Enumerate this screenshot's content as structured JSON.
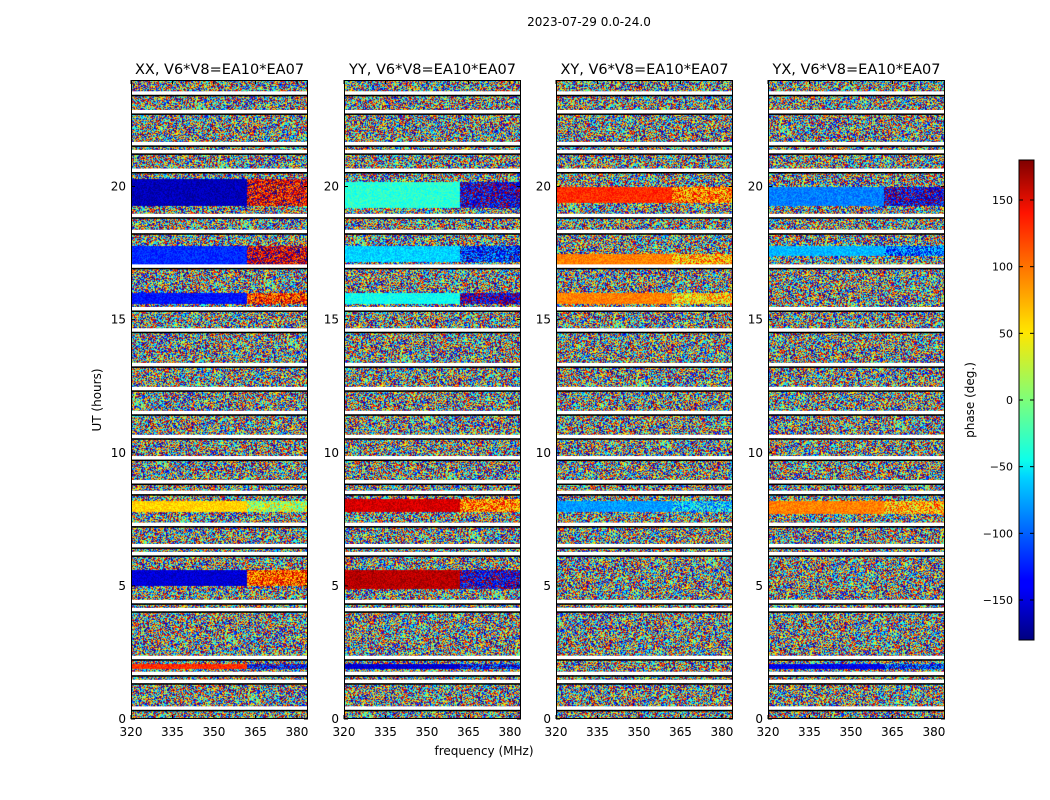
{
  "suptitle": "2023-07-29 0.0-24.0",
  "chart_data": {
    "type": "heatmap",
    "title": "2023-07-29 0.0-24.0",
    "xlabel": "frequency (MHz)",
    "ylabel": "UT (hours)",
    "xlim": [
      320,
      384
    ],
    "ylim": [
      0,
      24
    ],
    "xticks": [
      320,
      335,
      350,
      365,
      380
    ],
    "yticks": [
      0,
      5,
      10,
      15,
      20
    ],
    "colorbar": {
      "label": "phase (deg.)",
      "range": [
        -180,
        180
      ],
      "ticks": [
        150,
        100,
        50,
        0,
        -50,
        -100,
        -150
      ],
      "tick_labels": [
        "150",
        "100",
        "50",
        "0",
        "−50",
        "−100",
        "−150"
      ],
      "colormap": "jet"
    },
    "panels": [
      {
        "title": "XX, V6*V8=EA10*EA07",
        "coherent_bands": [
          {
            "t0": 19.3,
            "t1": 20.3,
            "phase_low": -160,
            "phase_high": 140
          },
          {
            "t0": 17.0,
            "t1": 17.8,
            "phase_low": -120,
            "phase_high": 150
          },
          {
            "t0": 15.6,
            "t1": 16.0,
            "phase_low": -130,
            "phase_high": 120
          },
          {
            "t0": 7.8,
            "t1": 8.2,
            "phase_low": 60,
            "phase_high": 20
          },
          {
            "t0": 5.0,
            "t1": 5.6,
            "phase_low": -150,
            "phase_high": 110
          },
          {
            "t0": 1.9,
            "t1": 2.1,
            "phase_low": 120,
            "phase_high": -140
          }
        ]
      },
      {
        "title": "YY, V6*V8=EA10*EA07",
        "coherent_bands": [
          {
            "t0": 19.2,
            "t1": 20.2,
            "phase_low": -30,
            "phase_high": -150
          },
          {
            "t0": 17.2,
            "t1": 17.8,
            "phase_low": -60,
            "phase_high": -120
          },
          {
            "t0": 15.6,
            "t1": 16.0,
            "phase_low": -40,
            "phase_high": -160
          },
          {
            "t0": 7.8,
            "t1": 8.3,
            "phase_low": 150,
            "phase_high": 90
          },
          {
            "t0": 4.9,
            "t1": 5.6,
            "phase_low": 160,
            "phase_high": -150
          },
          {
            "t0": 1.9,
            "t1": 2.1,
            "phase_low": -150,
            "phase_high": -130
          }
        ]
      },
      {
        "title": "XY, V6*V8=EA10*EA07",
        "coherent_bands": [
          {
            "t0": 19.4,
            "t1": 20.0,
            "phase_low": 120,
            "phase_high": 90
          },
          {
            "t0": 17.0,
            "t1": 17.5,
            "phase_low": 90,
            "phase_high": 70
          },
          {
            "t0": 15.6,
            "t1": 16.0,
            "phase_low": 90,
            "phase_high": 60
          },
          {
            "t0": 7.8,
            "t1": 8.2,
            "phase_low": -80,
            "phase_high": -60
          }
        ]
      },
      {
        "title": "YX, V6*V8=EA10*EA07",
        "coherent_bands": [
          {
            "t0": 19.3,
            "t1": 20.0,
            "phase_low": -90,
            "phase_high": -150
          },
          {
            "t0": 17.4,
            "t1": 17.8,
            "phase_low": -70,
            "phase_high": -100
          },
          {
            "t0": 7.7,
            "t1": 8.2,
            "phase_low": 90,
            "phase_high": 70
          },
          {
            "t0": 1.9,
            "t1": 2.1,
            "phase_low": -140,
            "phase_high": -120
          }
        ]
      }
    ],
    "flagged_rows_hours": [
      0.4,
      1.4,
      1.7,
      2.3,
      4.1,
      4.4,
      6.2,
      6.5,
      7.3,
      8.5,
      8.9,
      9.8,
      10.6,
      11.5,
      12.4,
      13.3,
      14.6,
      15.4,
      17.0,
      18.3,
      18.9,
      20.6,
      21.3,
      21.6,
      22.8,
      23.5
    ]
  }
}
